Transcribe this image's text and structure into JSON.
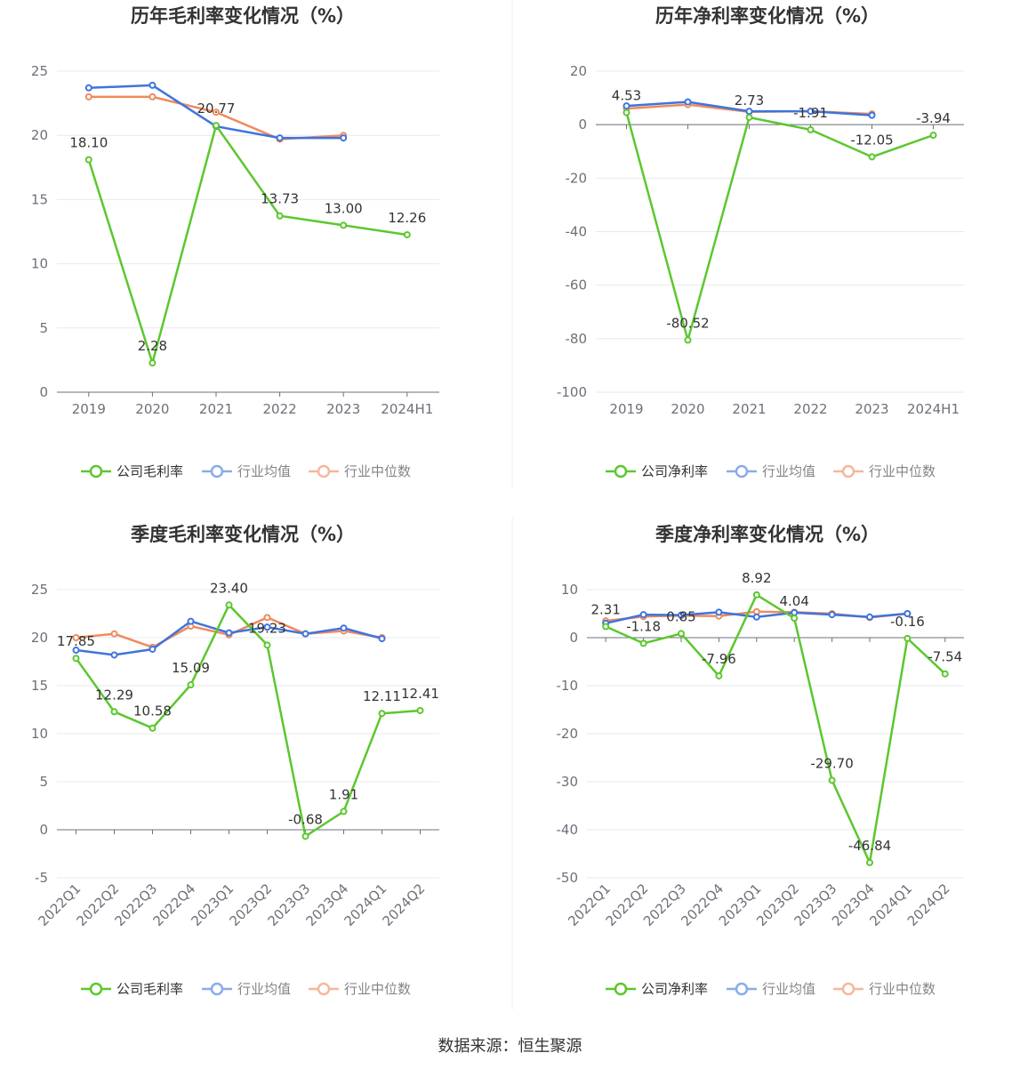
{
  "source": "数据来源：恒生聚源",
  "legend": {
    "industry_avg": "行业均值",
    "industry_median": "行业中位数"
  },
  "colors": {
    "company": "#5cc72f",
    "industry_avg": "#3e74dd",
    "industry_median": "#f08a5d",
    "grid": "#e6e8ee",
    "axis": "#6e7079"
  },
  "chart_data": [
    {
      "type": "line",
      "title": "历年毛利率变化情况（%）",
      "categories": [
        "2019",
        "2020",
        "2021",
        "2022",
        "2023",
        "2024H1"
      ],
      "ylim": [
        0,
        25
      ],
      "yticks": [
        0,
        5,
        10,
        15,
        20,
        25
      ],
      "rotate_x": false,
      "series": [
        {
          "name": "公司毛利率",
          "key": "company",
          "values": [
            18.1,
            2.28,
            20.77,
            13.73,
            13.0,
            12.26
          ],
          "labels": [
            "18.10",
            "2.28",
            "20.77",
            "13.73",
            "13.00",
            "12.26"
          ]
        },
        {
          "name": "行业均值",
          "key": "industry_avg",
          "values": [
            23.7,
            23.9,
            20.7,
            19.8,
            19.8,
            null
          ]
        },
        {
          "name": "行业中位数",
          "key": "industry_median",
          "values": [
            23.0,
            23.0,
            21.8,
            19.7,
            20.0,
            null
          ]
        }
      ]
    },
    {
      "type": "line",
      "title": "历年净利率变化情况（%）",
      "categories": [
        "2019",
        "2020",
        "2021",
        "2022",
        "2023",
        "2024H1"
      ],
      "ylim": [
        -100,
        20
      ],
      "yticks": [
        -100,
        -80,
        -60,
        -40,
        -20,
        0,
        20
      ],
      "rotate_x": false,
      "series": [
        {
          "name": "公司净利率",
          "key": "company",
          "values": [
            4.53,
            -80.52,
            2.73,
            -1.91,
            -12.05,
            -3.94
          ],
          "labels": [
            "4.53",
            "-80.52",
            "2.73",
            "-1.91",
            "-12.05",
            "-3.94"
          ]
        },
        {
          "name": "行业均值",
          "key": "industry_avg",
          "values": [
            7.0,
            8.5,
            5.0,
            5.0,
            3.5,
            null
          ]
        },
        {
          "name": "行业中位数",
          "key": "industry_median",
          "values": [
            6.0,
            7.5,
            4.8,
            5.0,
            4.0,
            null
          ]
        }
      ]
    },
    {
      "type": "line",
      "title": "季度毛利率变化情况（%）",
      "categories": [
        "2022Q1",
        "2022Q2",
        "2022Q3",
        "2022Q4",
        "2023Q1",
        "2023Q2",
        "2023Q3",
        "2023Q4",
        "2024Q1",
        "2024Q2"
      ],
      "ylim": [
        -5,
        25
      ],
      "yticks": [
        -5,
        0,
        5,
        10,
        15,
        20,
        25
      ],
      "rotate_x": true,
      "series": [
        {
          "name": "公司毛利率",
          "key": "company",
          "values": [
            17.85,
            12.29,
            10.58,
            15.09,
            23.4,
            19.23,
            -0.68,
            1.91,
            12.11,
            12.41
          ],
          "labels": [
            "17.85",
            "12.29",
            "10.58",
            "15.09",
            "23.40",
            "19.23",
            "-0.68",
            "1.91",
            "12.11",
            "12.41"
          ]
        },
        {
          "name": "行业均值",
          "key": "industry_avg",
          "values": [
            18.7,
            18.2,
            18.8,
            21.7,
            20.5,
            21.1,
            20.4,
            21.0,
            19.9,
            null
          ]
        },
        {
          "name": "行业中位数",
          "key": "industry_median",
          "values": [
            20.0,
            20.4,
            19.0,
            21.2,
            20.3,
            22.1,
            20.4,
            20.7,
            20.0,
            null
          ]
        }
      ]
    },
    {
      "type": "line",
      "title": "季度净利率变化情况（%）",
      "categories": [
        "2022Q1",
        "2022Q2",
        "2022Q3",
        "2022Q4",
        "2023Q1",
        "2023Q2",
        "2023Q3",
        "2023Q4",
        "2024Q1",
        "2024Q2"
      ],
      "ylim": [
        -50,
        10
      ],
      "yticks": [
        -50,
        -40,
        -30,
        -20,
        -10,
        0,
        10
      ],
      "rotate_x": true,
      "series": [
        {
          "name": "公司净利率",
          "key": "company",
          "values": [
            2.31,
            -1.18,
            0.85,
            -7.96,
            8.92,
            4.04,
            -29.7,
            -46.84,
            -0.16,
            -7.54
          ],
          "labels": [
            "2.31",
            "-1.18",
            "0.85",
            "-7.96",
            "8.92",
            "4.04",
            "-29.70",
            "-46.84",
            "-0.16",
            "-7.54"
          ]
        },
        {
          "name": "行业均值",
          "key": "industry_avg",
          "values": [
            3.0,
            4.8,
            4.7,
            5.3,
            4.3,
            5.2,
            4.8,
            4.3,
            5.0,
            null
          ]
        },
        {
          "name": "行业中位数",
          "key": "industry_median",
          "values": [
            3.5,
            4.4,
            4.6,
            4.5,
            5.4,
            5.3,
            5.0,
            4.2,
            5.0,
            null
          ]
        }
      ]
    }
  ]
}
